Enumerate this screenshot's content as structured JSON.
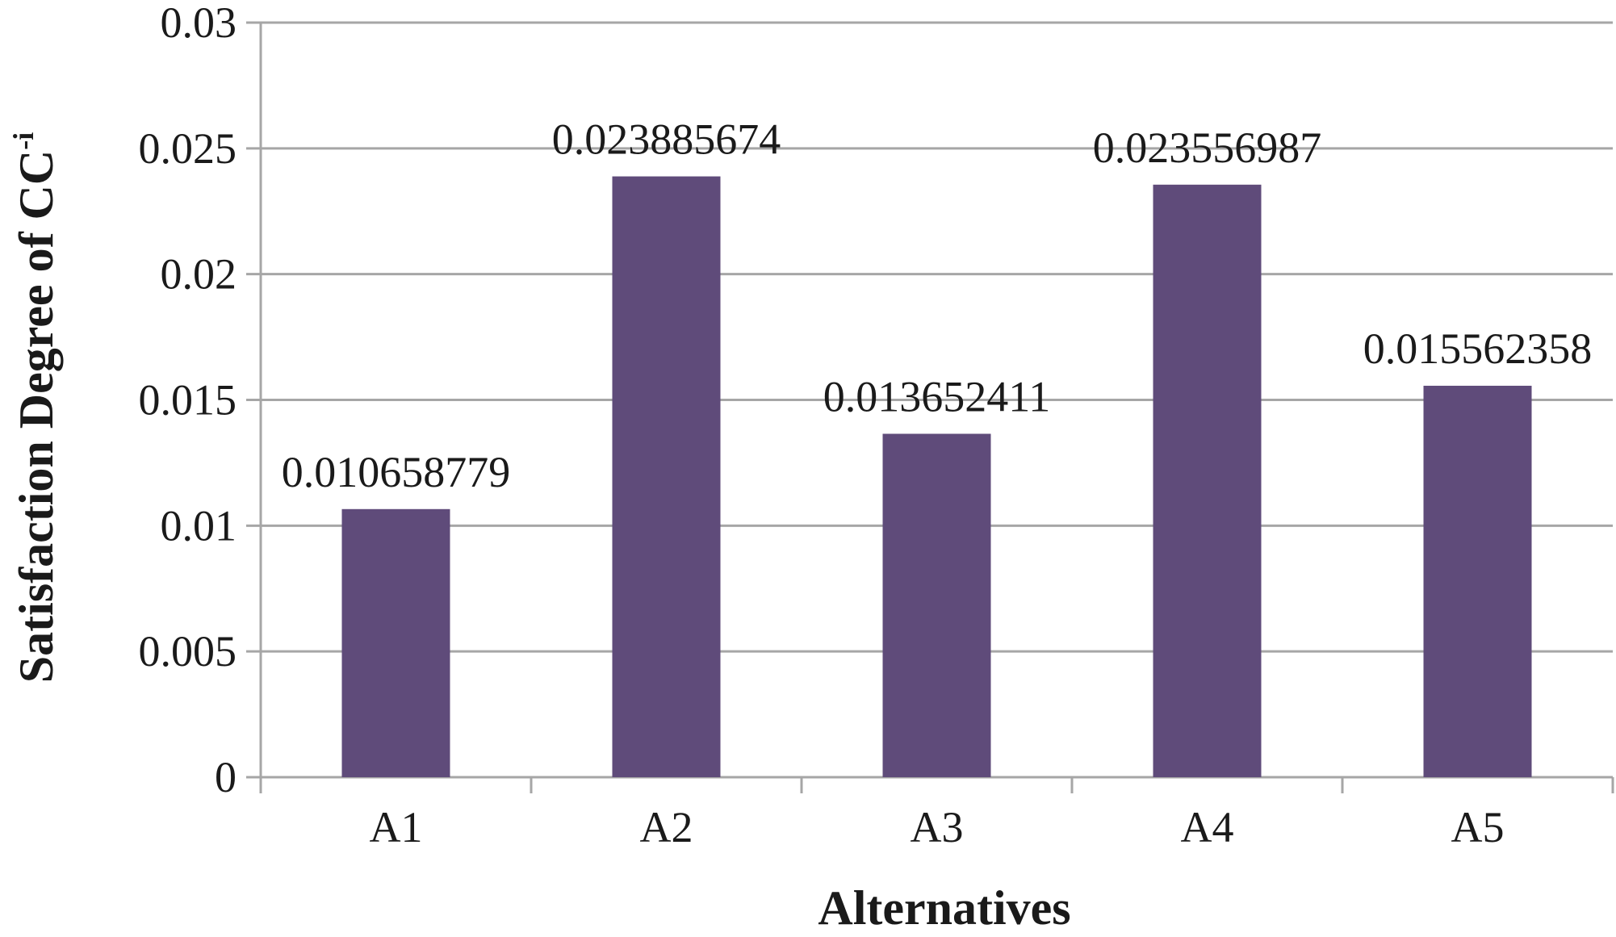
{
  "chart_data": {
    "type": "bar",
    "categories": [
      "A1",
      "A2",
      "A3",
      "A4",
      "A5"
    ],
    "values": [
      0.010658779,
      0.023885674,
      0.013652411,
      0.023556987,
      0.015562358
    ],
    "data_labels": [
      "0.010658779",
      "0.023885674",
      "0.013652411",
      "0.023556987",
      "0.015562358"
    ],
    "title": "",
    "xlabel": "Alternatives",
    "ylabel": {
      "main": "Satisfaction Degree of CC",
      "superscript": "-i"
    },
    "ylim": [
      0,
      0.03
    ],
    "yticks": [
      0,
      0.005,
      0.01,
      0.015,
      0.02,
      0.025,
      0.03
    ],
    "ytick_labels": [
      "0",
      "0.005",
      "0.01",
      "0.015",
      "0.02",
      "0.025",
      "0.03"
    ],
    "grid": true,
    "legend": "none",
    "colors": {
      "bar": "#5f4b7a",
      "grid": "#a6a6a6",
      "axis": "#a6a6a6",
      "text": "#1a1a1a"
    }
  }
}
